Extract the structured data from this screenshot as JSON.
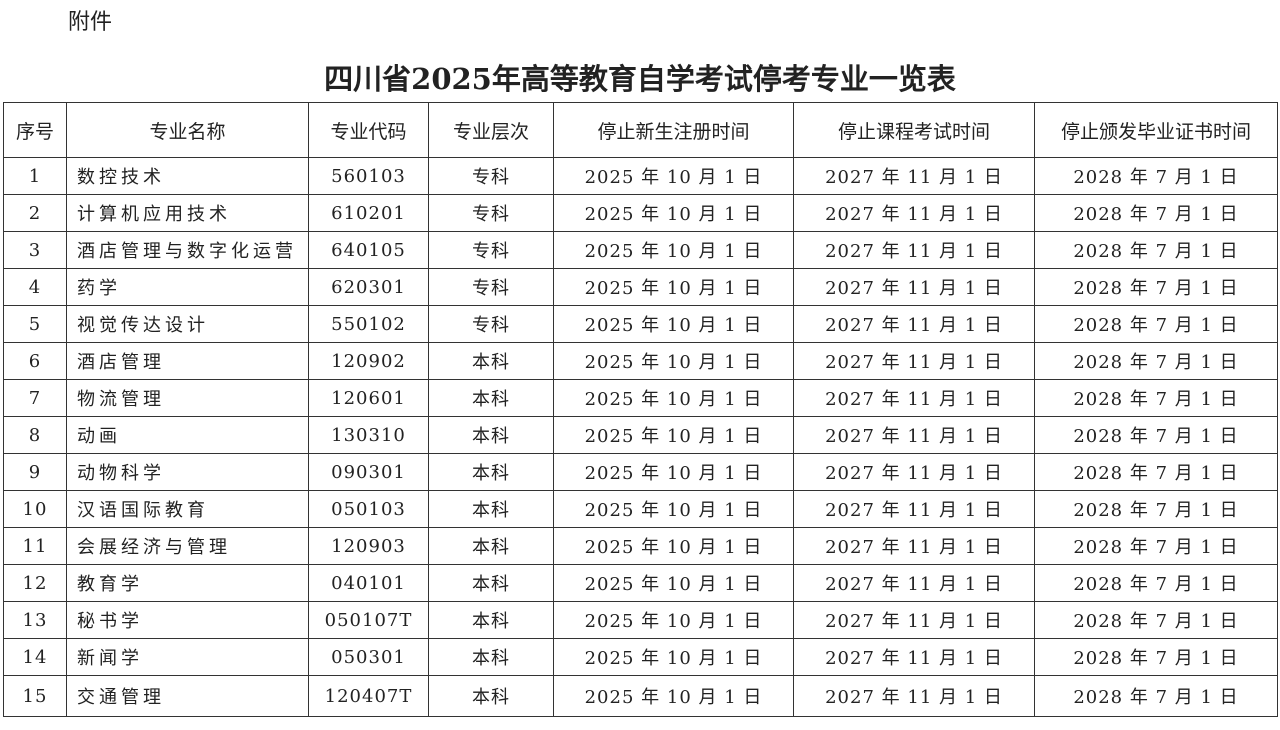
{
  "attachment_label": "附件",
  "title": "四川省2025年高等教育自学考试停考专业一览表",
  "table": {
    "headers": [
      "序号",
      "专业名称",
      "专业代码",
      "专业层次",
      "停止新生注册时间",
      "停止课程考试时间",
      "停止颁发毕业证书时间"
    ],
    "rows": [
      [
        "1",
        "数控技术",
        "560103",
        "专科",
        "2025 年 10 月 1 日",
        "2027 年 11 月 1 日",
        "2028 年 7 月 1 日"
      ],
      [
        "2",
        "计算机应用技术",
        "610201",
        "专科",
        "2025 年 10 月 1 日",
        "2027 年 11 月 1 日",
        "2028 年 7 月 1 日"
      ],
      [
        "3",
        "酒店管理与数字化运营",
        "640105",
        "专科",
        "2025 年 10 月 1 日",
        "2027 年 11 月 1 日",
        "2028 年 7 月 1 日"
      ],
      [
        "4",
        "药学",
        "620301",
        "专科",
        "2025 年 10 月 1 日",
        "2027 年 11 月 1 日",
        "2028 年 7 月 1 日"
      ],
      [
        "5",
        "视觉传达设计",
        "550102",
        "专科",
        "2025 年 10 月 1 日",
        "2027 年 11 月 1 日",
        "2028 年 7 月 1 日"
      ],
      [
        "6",
        "酒店管理",
        "120902",
        "本科",
        "2025 年 10 月 1 日",
        "2027 年 11 月 1 日",
        "2028 年 7 月 1 日"
      ],
      [
        "7",
        "物流管理",
        "120601",
        "本科",
        "2025 年 10 月 1 日",
        "2027 年 11 月 1 日",
        "2028 年 7 月 1 日"
      ],
      [
        "8",
        "动画",
        "130310",
        "本科",
        "2025 年 10 月 1 日",
        "2027 年 11 月 1 日",
        "2028 年 7 月 1 日"
      ],
      [
        "9",
        "动物科学",
        "090301",
        "本科",
        "2025 年 10 月 1 日",
        "2027 年 11 月 1 日",
        "2028 年 7 月 1 日"
      ],
      [
        "10",
        "汉语国际教育",
        "050103",
        "本科",
        "2025 年 10 月 1 日",
        "2027 年 11 月 1 日",
        "2028 年 7 月 1 日"
      ],
      [
        "11",
        "会展经济与管理",
        "120903",
        "本科",
        "2025 年 10 月 1 日",
        "2027 年 11 月 1 日",
        "2028 年 7 月 1 日"
      ],
      [
        "12",
        "教育学",
        "040101",
        "本科",
        "2025 年 10 月 1 日",
        "2027 年 11 月 1 日",
        "2028 年 7 月 1 日"
      ],
      [
        "13",
        "秘书学",
        "050107T",
        "本科",
        "2025 年 10 月 1 日",
        "2027 年 11 月 1 日",
        "2028 年 7 月 1 日"
      ],
      [
        "14",
        "新闻学",
        "050301",
        "本科",
        "2025 年 10 月 1 日",
        "2027 年 11 月 1 日",
        "2028 年 7 月 1 日"
      ],
      [
        "15",
        "交通管理",
        "120407T",
        "本科",
        "2025 年 10 月 1 日",
        "2027 年 11 月 1 日",
        "2028 年 7 月 1 日"
      ]
    ]
  }
}
